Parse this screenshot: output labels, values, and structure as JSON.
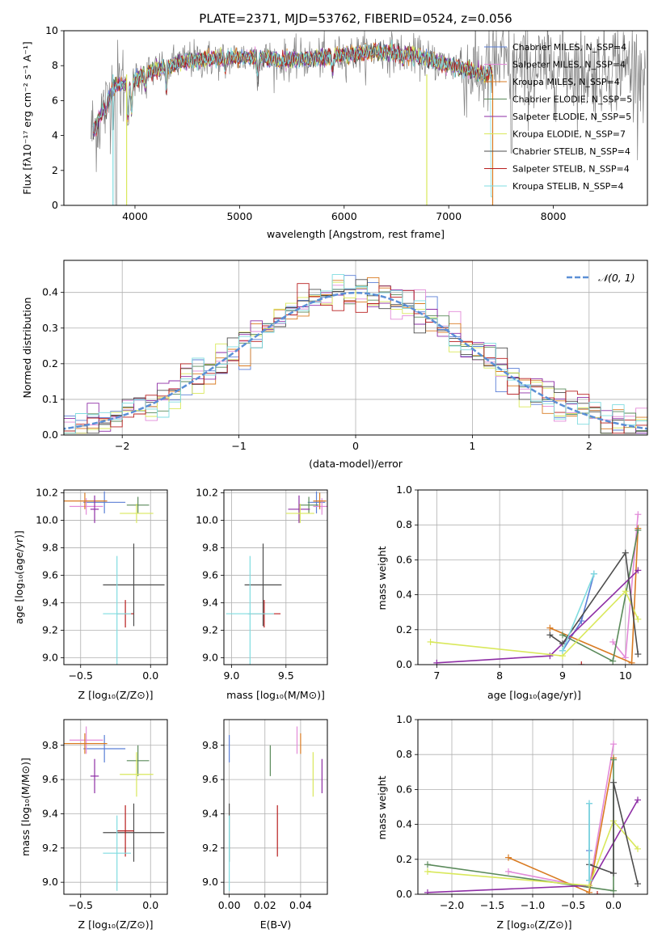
{
  "title": "PLATE=2371, MJD=53762, FIBERID=0524, z=0.056",
  "colors": {
    "chabrier_miles": "#5b7fd6",
    "salpeter_miles": "#e28ad8",
    "kroupa_miles": "#d97b22",
    "chabrier_elodie": "#5a8a5a",
    "salpeter_elodie": "#8e2ea5",
    "kroupa_elodie": "#d9e85b",
    "chabrier_stelib": "#4d4d4d",
    "salpeter_stelib": "#b81f1f",
    "kroupa_stelib": "#7fdce0",
    "data": "#808080",
    "normal": "#5b8fd6"
  },
  "chart_data": [
    {
      "id": "spectrum",
      "type": "line",
      "xlabel": "wavelength [Angstrom, rest frame]",
      "ylabel": "Flux [fλ10⁻¹⁷ erg cm⁻² s⁻¹ A⁻¹]",
      "xlim": [
        3320,
        8900
      ],
      "ylim": [
        0,
        10
      ],
      "xticks": [
        4000,
        5000,
        6000,
        7000,
        8000
      ],
      "yticks": [
        0,
        2,
        4,
        6,
        8,
        10
      ],
      "legend_position": "top-right",
      "legend": [
        "Chabrier MILES, N_SSP=4",
        "Salpeter MILES, N_SSP=4",
        "Kroupa MILES, N_SSP=4",
        "Chabrier ELODIE, N_SSP=5",
        "Salpeter ELODIE, N_SSP=5",
        "Kroupa ELODIE, N_SSP=7",
        "Chabrier STELIB, N_SSP=4",
        "Salpeter STELIB, N_SSP=4",
        "Kroupa STELIB, N_SSP=4"
      ],
      "continuum": {
        "x": [
          3600,
          3700,
          3800,
          3950,
          4100,
          4300,
          4500,
          4800,
          5100,
          5400,
          5700,
          6000,
          6300,
          6600,
          6900,
          7100,
          7300,
          7420
        ],
        "y": [
          4.2,
          5.5,
          6.8,
          7.0,
          7.6,
          7.9,
          8.3,
          8.4,
          8.5,
          8.3,
          8.4,
          8.6,
          8.8,
          8.7,
          8.2,
          7.9,
          7.5,
          7.6
        ]
      }
    },
    {
      "id": "residuals",
      "type": "line",
      "xlabel": "(data-model)/error",
      "ylabel": "Normed distribution",
      "xlim": [
        -2.5,
        2.5
      ],
      "ylim": [
        0,
        0.49
      ],
      "xticks": [
        -2,
        -1,
        0,
        1,
        2
      ],
      "xtick_labels": [
        "−2",
        "−1",
        "0",
        "1",
        "2"
      ],
      "yticks": [
        0.0,
        0.1,
        0.2,
        0.3,
        0.4
      ],
      "yticks_labels": [
        "0.0",
        "0.1",
        "0.2",
        "0.3",
        "0.4"
      ],
      "legend": [
        "𝒩(0, 1)"
      ],
      "legend_position": "top-right"
    },
    {
      "id": "age_vs_Z",
      "type": "scatter",
      "xlabel": "Z [log₁₀(Z/Z⊙)]",
      "ylabel": "age  [log₁₀(age/yr)]",
      "xlim": [
        -0.62,
        0.12
      ],
      "ylim": [
        8.95,
        10.22
      ],
      "xticks": [
        -0.5,
        0.0
      ],
      "xtick_labels": [
        "−0.5",
        "0.0"
      ],
      "yticks": [
        9.0,
        9.2,
        9.4,
        9.6,
        9.8,
        10.0,
        10.2
      ],
      "yticks_labels": [
        "9.0",
        "9.2",
        "9.4",
        "9.6",
        "9.8",
        "10.0",
        "10.2"
      ]
    },
    {
      "id": "age_vs_mass",
      "type": "scatter",
      "xlabel": "mass [log₁₀(M/M⊙)]",
      "xlim": [
        8.93,
        9.88
      ],
      "ylim": [
        8.95,
        10.22
      ],
      "xticks": [
        9.0,
        9.5
      ],
      "xtick_labels": [
        "9.0",
        "9.5"
      ],
      "yticks": [
        9.0,
        9.2,
        9.4,
        9.6,
        9.8,
        10.0,
        10.2
      ],
      "yticks_labels": [
        "9.0",
        "9.2",
        "9.4",
        "9.6",
        "9.8",
        "10.0",
        "10.2"
      ]
    },
    {
      "id": "massweight_vs_age",
      "type": "line",
      "xlabel": "age  [log₁₀(age/yr)]",
      "ylabel": "mass weight",
      "xlim": [
        6.7,
        10.35
      ],
      "ylim": [
        0,
        1.0
      ],
      "xticks": [
        7,
        8,
        9,
        10
      ],
      "xtick_labels": [
        "7",
        "8",
        "9",
        "10"
      ],
      "yticks": [
        0.0,
        0.2,
        0.4,
        0.6,
        0.8,
        1.0
      ],
      "yticks_labels": [
        "0.0",
        "0.2",
        "0.4",
        "0.6",
        "0.8",
        "1.0"
      ]
    },
    {
      "id": "mass_vs_Z",
      "type": "scatter",
      "xlabel": "Z [log₁₀(Z/Z⊙)]",
      "ylabel": "mass [log₁₀(M/M⊙)]",
      "xlim": [
        -0.62,
        0.12
      ],
      "ylim": [
        8.93,
        9.95
      ],
      "xticks": [
        -0.5,
        0.0
      ],
      "xtick_labels": [
        "−0.5",
        "0.0"
      ],
      "yticks": [
        9.0,
        9.2,
        9.4,
        9.6,
        9.8
      ],
      "yticks_labels": [
        "9.0",
        "9.2",
        "9.4",
        "9.6",
        "9.8"
      ]
    },
    {
      "id": "mass_vs_ebv",
      "type": "scatter",
      "xlabel": "E(B-V)",
      "xlim": [
        -0.003,
        0.055
      ],
      "ylim": [
        8.93,
        9.95
      ],
      "xticks": [
        0.0,
        0.02,
        0.04
      ],
      "xtick_labels": [
        "0.00",
        "0.02",
        "0.04"
      ],
      "yticks": [
        9.0,
        9.2,
        9.4,
        9.6,
        9.8
      ],
      "yticks_labels": [
        "9.0",
        "9.2",
        "9.4",
        "9.6",
        "9.8"
      ]
    },
    {
      "id": "massweight_vs_Z",
      "type": "line",
      "xlabel": "Z [log₁₀(Z/Z⊙)]",
      "ylabel": "mass weight",
      "xlim": [
        -2.42,
        0.42
      ],
      "ylim": [
        0,
        1.0
      ],
      "xticks": [
        -2.0,
        -1.5,
        -1.0,
        -0.5,
        0.0
      ],
      "xtick_labels": [
        "−2.0",
        "−1.5",
        "−1.0",
        "−0.5",
        "0.0"
      ],
      "yticks": [
        0.0,
        0.2,
        0.4,
        0.6,
        0.8,
        1.0
      ],
      "yticks_labels": [
        "0.0",
        "0.2",
        "0.4",
        "0.6",
        "0.8",
        "1.0"
      ]
    }
  ],
  "runs": [
    {
      "key": "chabrier_miles",
      "ebv": 0.0,
      "ssp_age": [
        9.0,
        9.3,
        9.5
      ],
      "ssp_Z": [
        -0.3,
        -0.3,
        -0.3
      ],
      "ssp_w": [
        0.08,
        0.25,
        0.52
      ],
      "age": [
        10.13,
        0.08
      ],
      "Z": [
        -0.33,
        0.15
      ],
      "mass": [
        9.78,
        0.08
      ]
    },
    {
      "key": "salpeter_miles",
      "ebv": 0.038,
      "ssp_age": [
        9.8,
        10.0,
        10.2
      ],
      "ssp_Z": [
        -1.3,
        -0.3,
        0.0
      ],
      "ssp_w": [
        0.13,
        0.04,
        0.86
      ],
      "age": [
        10.1,
        0.06
      ],
      "Z": [
        -0.46,
        0.12
      ],
      "mass": [
        9.83,
        0.08
      ]
    },
    {
      "key": "kroupa_miles",
      "ebv": 0.04,
      "ssp_age": [
        8.8,
        10.1,
        10.2
      ],
      "ssp_Z": [
        -1.3,
        -0.3,
        0.0
      ],
      "ssp_w": [
        0.21,
        0.01,
        0.78
      ],
      "age": [
        10.14,
        0.06
      ],
      "Z": [
        -0.47,
        0.16
      ],
      "mass": [
        9.81,
        0.06
      ]
    },
    {
      "key": "chabrier_elodie",
      "ebv": 0.023,
      "ssp_age": [
        9.0,
        9.8,
        10.2
      ],
      "ssp_Z": [
        -2.3,
        0.0,
        0.0
      ],
      "ssp_w": [
        0.17,
        0.02,
        0.77
      ],
      "age": [
        10.11,
        0.06
      ],
      "Z": [
        -0.09,
        0.08
      ],
      "mass": [
        9.71,
        0.09
      ]
    },
    {
      "key": "salpeter_elodie",
      "ebv": 0.052,
      "ssp_age": [
        7.0,
        8.8,
        10.2
      ],
      "ssp_Z": [
        -2.3,
        -0.3,
        0.3
      ],
      "ssp_w": [
        0.01,
        0.05,
        0.54
      ],
      "age": [
        10.08,
        0.1
      ],
      "Z": [
        -0.4,
        0.03
      ],
      "mass": [
        9.62,
        0.1
      ]
    },
    {
      "key": "kroupa_elodie",
      "ebv": 0.047,
      "ssp_age": [
        6.9,
        9.0,
        10.0,
        10.2
      ],
      "ssp_Z": [
        -2.3,
        -0.3,
        0.0,
        0.3
      ],
      "ssp_w": [
        0.13,
        0.05,
        0.42,
        0.26
      ],
      "age": [
        10.05,
        0.07
      ],
      "Z": [
        -0.1,
        0.12
      ],
      "mass": [
        9.63,
        0.13
      ]
    },
    {
      "key": "chabrier_stelib",
      "ebv": 0.0,
      "ssp_age": [
        8.8,
        9.0,
        10.0,
        10.2
      ],
      "ssp_Z": [
        -0.3,
        0.0,
        0.0,
        0.3
      ],
      "ssp_w": [
        0.17,
        0.12,
        0.64,
        0.06
      ],
      "age": [
        9.53,
        0.3
      ],
      "Z": [
        -0.12,
        0.22
      ],
      "mass": [
        9.29,
        0.17
      ]
    },
    {
      "key": "salpeter_stelib",
      "ebv": 0.027,
      "ssp_age": [
        9.3
      ],
      "ssp_Z": [
        -0.2
      ],
      "ssp_w": [
        0.0
      ],
      "age": [
        9.32,
        0.1
      ],
      "Z": [
        -0.18,
        0.06
      ],
      "mass": [
        9.3,
        0.15
      ]
    },
    {
      "key": "kroupa_stelib",
      "ebv": 0.0,
      "ssp_age": [
        9.0,
        9.5
      ],
      "ssp_Z": [
        -0.3,
        -0.3
      ],
      "ssp_w": [
        0.08,
        0.52
      ],
      "age": [
        9.32,
        0.42
      ],
      "Z": [
        -0.24,
        0.1
      ],
      "mass": [
        9.17,
        0.22
      ]
    }
  ]
}
